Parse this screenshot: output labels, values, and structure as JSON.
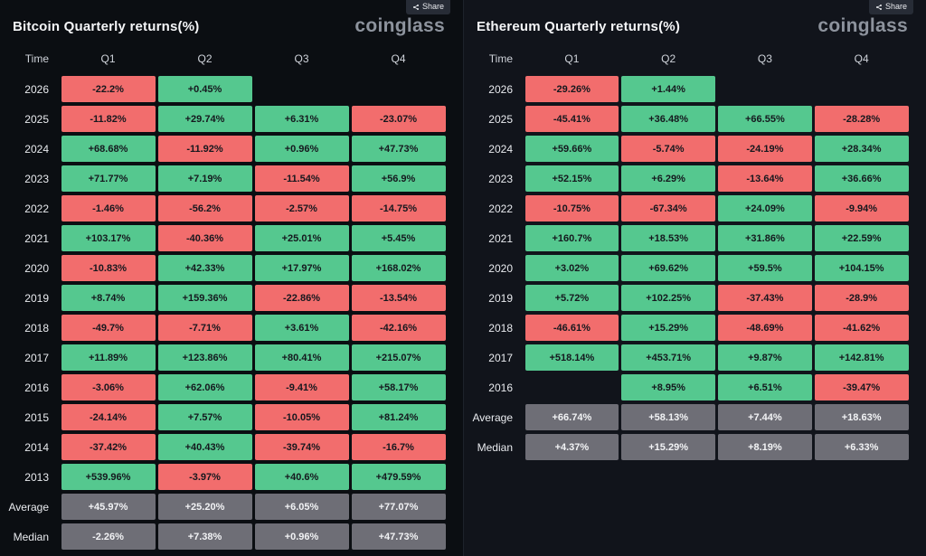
{
  "colors": {
    "bg-left": "#0b0e12",
    "bg-right": "#11141b",
    "positive": "#55c88f",
    "negative": "#f26d6d",
    "summary": "#6e6e76",
    "cell-text": "#15181e",
    "summary-text": "#f2f3f5",
    "label-text": "#e9ebef",
    "header-text": "#cfd3da",
    "title-text": "#f5f6f8",
    "logo-text": "#8d939d"
  },
  "share_button": {
    "label": "Share"
  },
  "branding": {
    "logo": "coinglass"
  },
  "chart_data": [
    {
      "type": "heatmap",
      "title": "Bitcoin Quarterly returns(%)",
      "columns": [
        "Time",
        "Q1",
        "Q2",
        "Q3",
        "Q4"
      ],
      "rows": [
        {
          "label": "2026",
          "values": [
            "-22.2%",
            "+0.45%",
            null,
            null
          ]
        },
        {
          "label": "2025",
          "values": [
            "-11.82%",
            "+29.74%",
            "+6.31%",
            "-23.07%"
          ]
        },
        {
          "label": "2024",
          "values": [
            "+68.68%",
            "-11.92%",
            "+0.96%",
            "+47.73%"
          ]
        },
        {
          "label": "2023",
          "values": [
            "+71.77%",
            "+7.19%",
            "-11.54%",
            "+56.9%"
          ]
        },
        {
          "label": "2022",
          "values": [
            "-1.46%",
            "-56.2%",
            "-2.57%",
            "-14.75%"
          ]
        },
        {
          "label": "2021",
          "values": [
            "+103.17%",
            "-40.36%",
            "+25.01%",
            "+5.45%"
          ]
        },
        {
          "label": "2020",
          "values": [
            "-10.83%",
            "+42.33%",
            "+17.97%",
            "+168.02%"
          ]
        },
        {
          "label": "2019",
          "values": [
            "+8.74%",
            "+159.36%",
            "-22.86%",
            "-13.54%"
          ]
        },
        {
          "label": "2018",
          "values": [
            "-49.7%",
            "-7.71%",
            "+3.61%",
            "-42.16%"
          ]
        },
        {
          "label": "2017",
          "values": [
            "+11.89%",
            "+123.86%",
            "+80.41%",
            "+215.07%"
          ]
        },
        {
          "label": "2016",
          "values": [
            "-3.06%",
            "+62.06%",
            "-9.41%",
            "+58.17%"
          ]
        },
        {
          "label": "2015",
          "values": [
            "-24.14%",
            "+7.57%",
            "-10.05%",
            "+81.24%"
          ]
        },
        {
          "label": "2014",
          "values": [
            "-37.42%",
            "+40.43%",
            "-39.74%",
            "-16.7%"
          ]
        },
        {
          "label": "2013",
          "values": [
            "+539.96%",
            "-3.97%",
            "+40.6%",
            "+479.59%"
          ]
        },
        {
          "label": "Average",
          "summary": true,
          "values": [
            "+45.97%",
            "+25.20%",
            "+6.05%",
            "+77.07%"
          ]
        },
        {
          "label": "Median",
          "summary": true,
          "values": [
            "-2.26%",
            "+7.38%",
            "+0.96%",
            "+47.73%"
          ]
        }
      ]
    },
    {
      "type": "heatmap",
      "title": "Ethereum Quarterly returns(%)",
      "columns": [
        "Time",
        "Q1",
        "Q2",
        "Q3",
        "Q4"
      ],
      "rows": [
        {
          "label": "2026",
          "values": [
            "-29.26%",
            "+1.44%",
            null,
            null
          ]
        },
        {
          "label": "2025",
          "values": [
            "-45.41%",
            "+36.48%",
            "+66.55%",
            "-28.28%"
          ]
        },
        {
          "label": "2024",
          "values": [
            "+59.66%",
            "-5.74%",
            "-24.19%",
            "+28.34%"
          ]
        },
        {
          "label": "2023",
          "values": [
            "+52.15%",
            "+6.29%",
            "-13.64%",
            "+36.66%"
          ]
        },
        {
          "label": "2022",
          "values": [
            "-10.75%",
            "-67.34%",
            "+24.09%",
            "-9.94%"
          ]
        },
        {
          "label": "2021",
          "values": [
            "+160.7%",
            "+18.53%",
            "+31.86%",
            "+22.59%"
          ]
        },
        {
          "label": "2020",
          "values": [
            "+3.02%",
            "+69.62%",
            "+59.5%",
            "+104.15%"
          ]
        },
        {
          "label": "2019",
          "values": [
            "+5.72%",
            "+102.25%",
            "-37.43%",
            "-28.9%"
          ]
        },
        {
          "label": "2018",
          "values": [
            "-46.61%",
            "+15.29%",
            "-48.69%",
            "-41.62%"
          ]
        },
        {
          "label": "2017",
          "values": [
            "+518.14%",
            "+453.71%",
            "+9.87%",
            "+142.81%"
          ]
        },
        {
          "label": "2016",
          "values": [
            null,
            "+8.95%",
            "+6.51%",
            "-39.47%"
          ]
        },
        {
          "label": "Average",
          "summary": true,
          "values": [
            "+66.74%",
            "+58.13%",
            "+7.44%",
            "+18.63%"
          ]
        },
        {
          "label": "Median",
          "summary": true,
          "values": [
            "+4.37%",
            "+15.29%",
            "+8.19%",
            "+6.33%"
          ]
        }
      ]
    }
  ]
}
